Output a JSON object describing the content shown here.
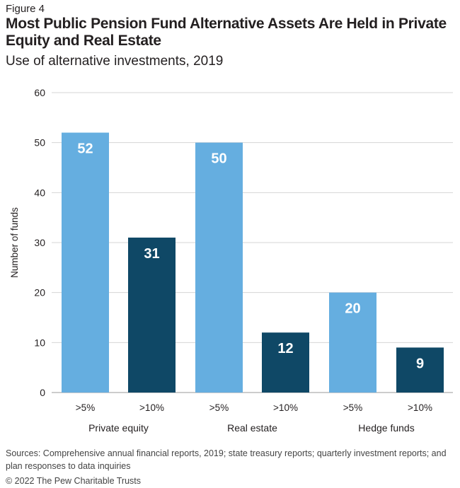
{
  "figure_label": "Figure 4",
  "title": "Most Public Pension Fund Alternative Assets Are Held in Private Equity and Real Estate",
  "subtitle": "Use of alternative investments, 2019",
  "sources": "Sources: Comprehensive annual financial reports, 2019; state treasury reports; quarterly investment reports; and plan responses to data inquiries",
  "copyright": "© 2022 The Pew Charitable Trusts",
  "chart_data": {
    "type": "bar",
    "ylabel": "Number of funds",
    "ylim": [
      0,
      60
    ],
    "yticks": [
      0,
      10,
      20,
      30,
      40,
      50,
      60
    ],
    "grid": true,
    "groups": [
      "Private equity",
      "Real estate",
      "Hedge funds"
    ],
    "bars": [
      {
        "group": "Private equity",
        "label": ">5%",
        "value": 52,
        "color": "#65aee0"
      },
      {
        "group": "Private equity",
        "label": ">10%",
        "value": 31,
        "color": "#0f4866"
      },
      {
        "group": "Real estate",
        "label": ">5%",
        "value": 50,
        "color": "#65aee0"
      },
      {
        "group": "Real estate",
        "label": ">10%",
        "value": 12,
        "color": "#0f4866"
      },
      {
        "group": "Hedge funds",
        "label": ">5%",
        "value": 20,
        "color": "#65aee0"
      },
      {
        "group": "Hedge funds",
        "label": ">10%",
        "value": 9,
        "color": "#0f4866"
      }
    ]
  }
}
